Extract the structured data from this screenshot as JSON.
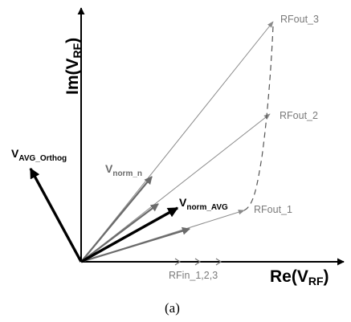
{
  "axes": {
    "y_main": "Im(V",
    "y_sub": "RF",
    "y_close": ")",
    "x_main": "Re(V",
    "x_sub": "RF",
    "x_close": ")"
  },
  "labels": {
    "rfout_3": "RFout_3",
    "rfout_2": "RFout_2",
    "rfout_1": "RFout_1",
    "rfin": "RFin_1,2,3"
  },
  "vectors": {
    "orthog_main": "V",
    "orthog_sub": "AVG_Orthog",
    "norm_n_main": "V",
    "norm_n_sub": "norm_n",
    "norm_avg_main": "V",
    "norm_avg_sub": "norm_AVG"
  },
  "caption": "(a)",
  "colors": {
    "axis": "#000000",
    "thin_vector": "#8a8a8a",
    "medium_vector": "#6b6b6b",
    "dark_vector": "#000000",
    "label_gray": "#7a7a7a",
    "norm_n_label": "#6b6b6b"
  }
}
